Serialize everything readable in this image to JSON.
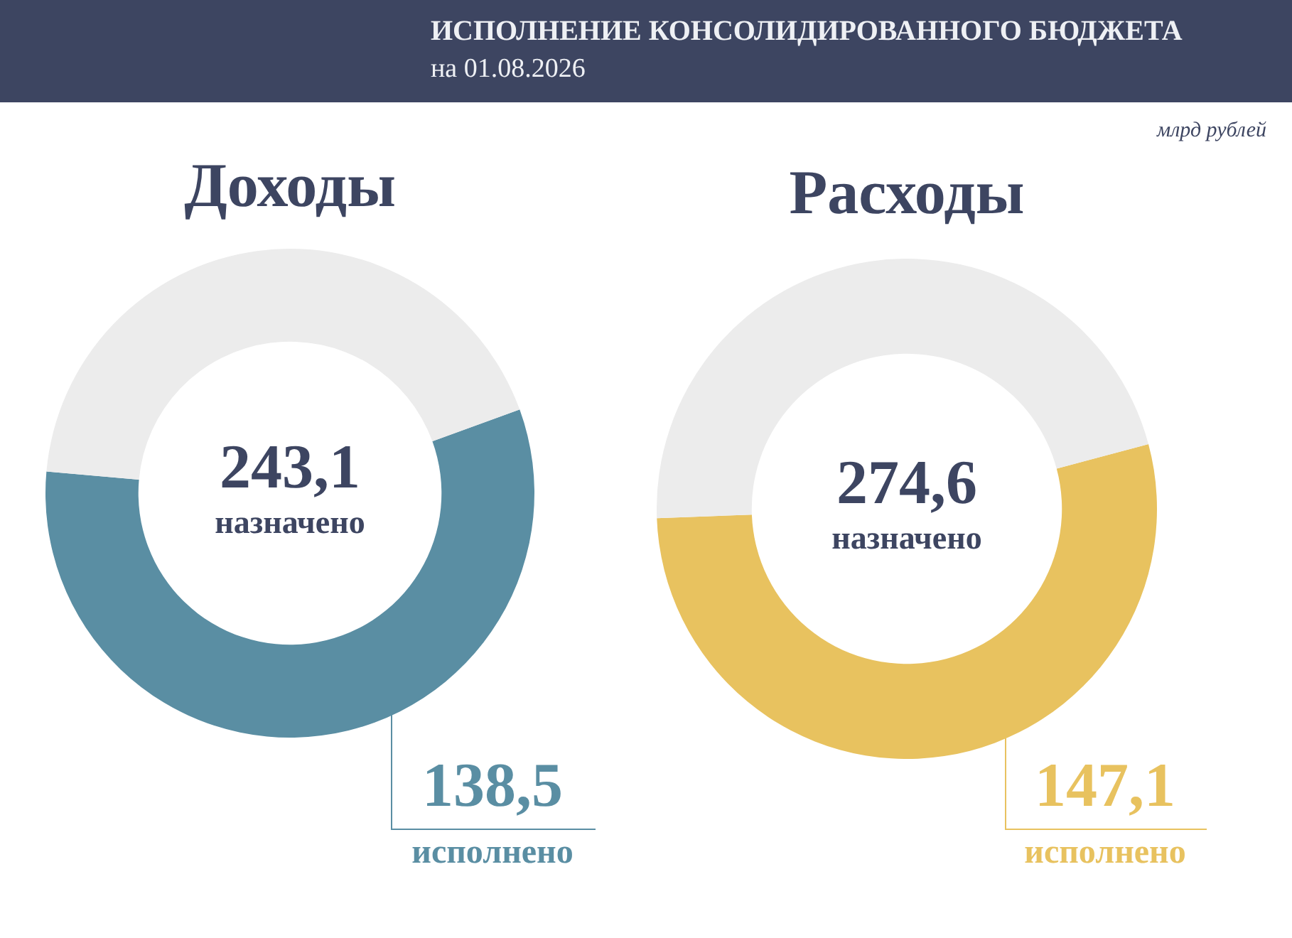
{
  "chart_data": [
    {
      "type": "donut",
      "title": "Доходы",
      "categories": [
        "исполнено",
        null
      ],
      "values": [
        138.5,
        104.6
      ],
      "colors": [
        "#5a8ea3",
        "#ececec"
      ],
      "value_labels": [
        "138,5",
        null
      ],
      "annotations": [
        "ИСПОЛНЕНИЕ КОНСОЛИДИРОВАННОГО БЮДЖЕТА",
        "на 01.08.2026",
        "243,1",
        "назначено"
      ]
    },
    {
      "type": "donut",
      "title": "Расходы",
      "categories": [
        "исполнено",
        null
      ],
      "values": [
        147.1,
        127.5
      ],
      "colors": [
        "#e8c25f",
        "#ececec"
      ],
      "value_labels": [
        "147,1",
        null
      ],
      "annotations": [
        "млрд рублей",
        "274,6",
        "назначено"
      ]
    }
  ]
}
